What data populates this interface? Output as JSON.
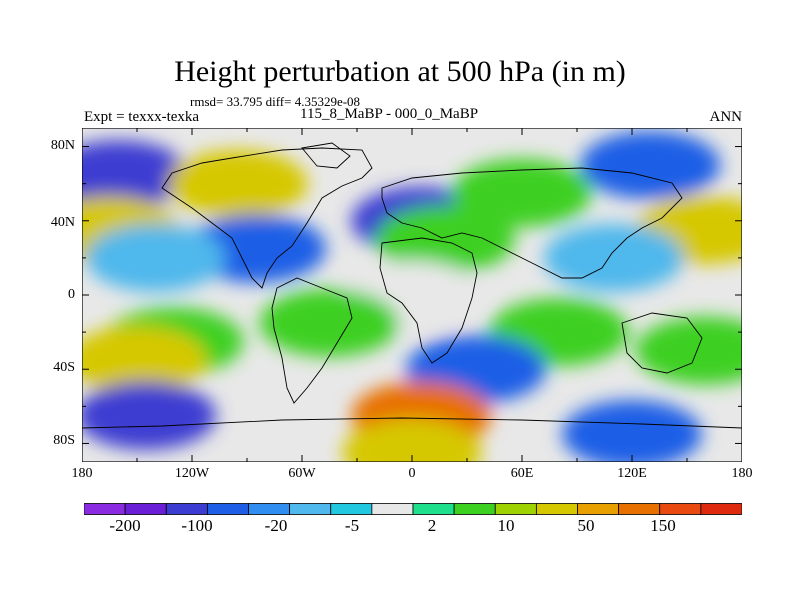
{
  "title": "Height perturbation at 500 hPa (in m)",
  "stats": "rmsd= 33.795 diff= 4.35329e-08",
  "experiment": "Expt = texxx-texka",
  "subtitle": "115_8_MaBP - 000_0_MaBP",
  "season": "ANN",
  "map": {
    "projection": "cylindrical equidistant",
    "x_ticks": [
      "180",
      "120W",
      "60W",
      "0",
      "60E",
      "120E",
      "180"
    ],
    "y_ticks": [
      "80N",
      "40N",
      "0",
      "40S",
      "80S"
    ],
    "field_pattern": [
      {
        "lon": -160,
        "lat": 65,
        "class": -100
      },
      {
        "lon": 130,
        "lat": 70,
        "class": -20
      },
      {
        "lon": -95,
        "lat": 60,
        "class": 50
      },
      {
        "lon": -165,
        "lat": 35,
        "class": 50
      },
      {
        "lon": 160,
        "lat": 35,
        "class": 50
      },
      {
        "lon": 5,
        "lat": 40,
        "class": -100
      },
      {
        "lon": 18,
        "lat": 30,
        "class": 10
      },
      {
        "lon": 60,
        "lat": 55,
        "class": 10
      },
      {
        "lon": -85,
        "lat": 25,
        "class": -20
      },
      {
        "lon": -140,
        "lat": 20,
        "class": -5
      },
      {
        "lon": 110,
        "lat": 20,
        "class": -5
      },
      {
        "lon": 0,
        "lat": 0,
        "class": 2
      },
      {
        "lon": -130,
        "lat": -25,
        "class": 10
      },
      {
        "lon": -45,
        "lat": -15,
        "class": 10
      },
      {
        "lon": 80,
        "lat": -20,
        "class": 10
      },
      {
        "lon": -150,
        "lat": -35,
        "class": 50
      },
      {
        "lon": 35,
        "lat": -40,
        "class": -20
      },
      {
        "lon": 160,
        "lat": -30,
        "class": 10
      },
      {
        "lon": -145,
        "lat": -65,
        "class": -100
      },
      {
        "lon": 5,
        "lat": -65,
        "class": 150
      },
      {
        "lon": 120,
        "lat": -75,
        "class": -20
      },
      {
        "lon": 0,
        "lat": -85,
        "class": 50
      }
    ]
  },
  "colorbar": {
    "colors": [
      "#8a2be2",
      "#6a1fd6",
      "#3c3cd2",
      "#1e5ee6",
      "#2f8ef0",
      "#4fb8ec",
      "#22c8e0",
      "#e8e8e8",
      "#1ee08c",
      "#3cd020",
      "#9ed200",
      "#d6c800",
      "#e8a000",
      "#e87000",
      "#e84a10",
      "#e02a10"
    ],
    "labels": [
      "-200",
      "-100",
      "-20",
      "-5",
      "2",
      "10",
      "50",
      "150"
    ]
  }
}
